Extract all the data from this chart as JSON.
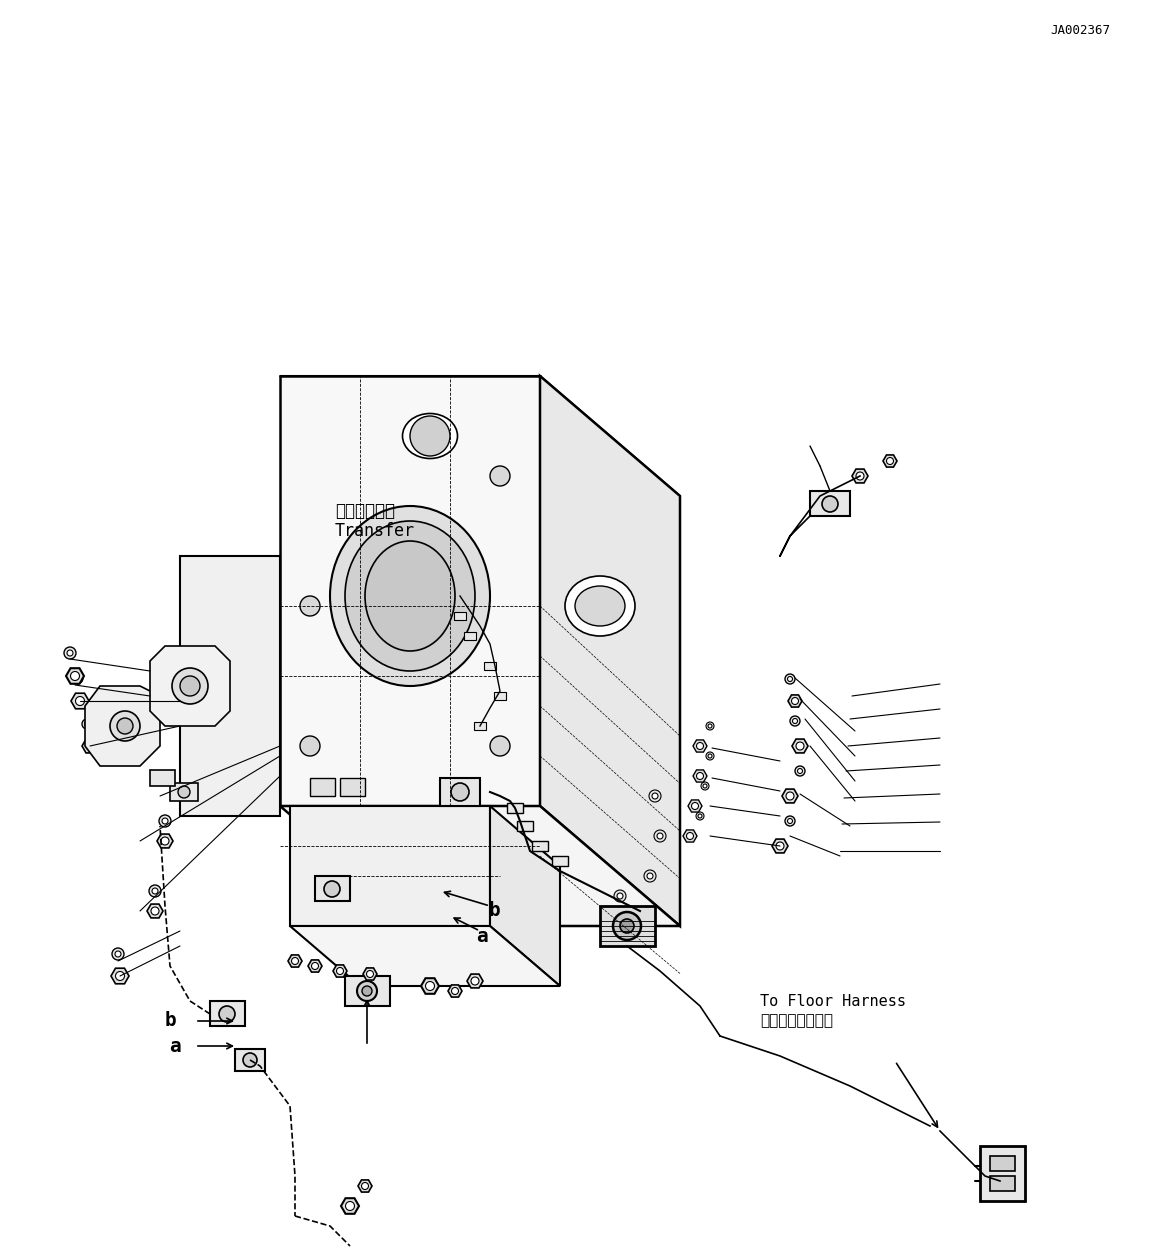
{
  "background_color": "#ffffff",
  "line_color": "#000000",
  "text_color": "#000000",
  "doc_number": "JA002367",
  "label_transfer_jp": "トランスファ",
  "label_transfer_en": "Transfer",
  "label_harness_jp": "フロアハーネスヘ",
  "label_harness_en": "To Floor Harness",
  "label_a1": "a",
  "label_b1": "b",
  "label_a2": "a",
  "label_b2": "b",
  "figsize": [
    11.63,
    12.56
  ],
  "dpi": 100
}
